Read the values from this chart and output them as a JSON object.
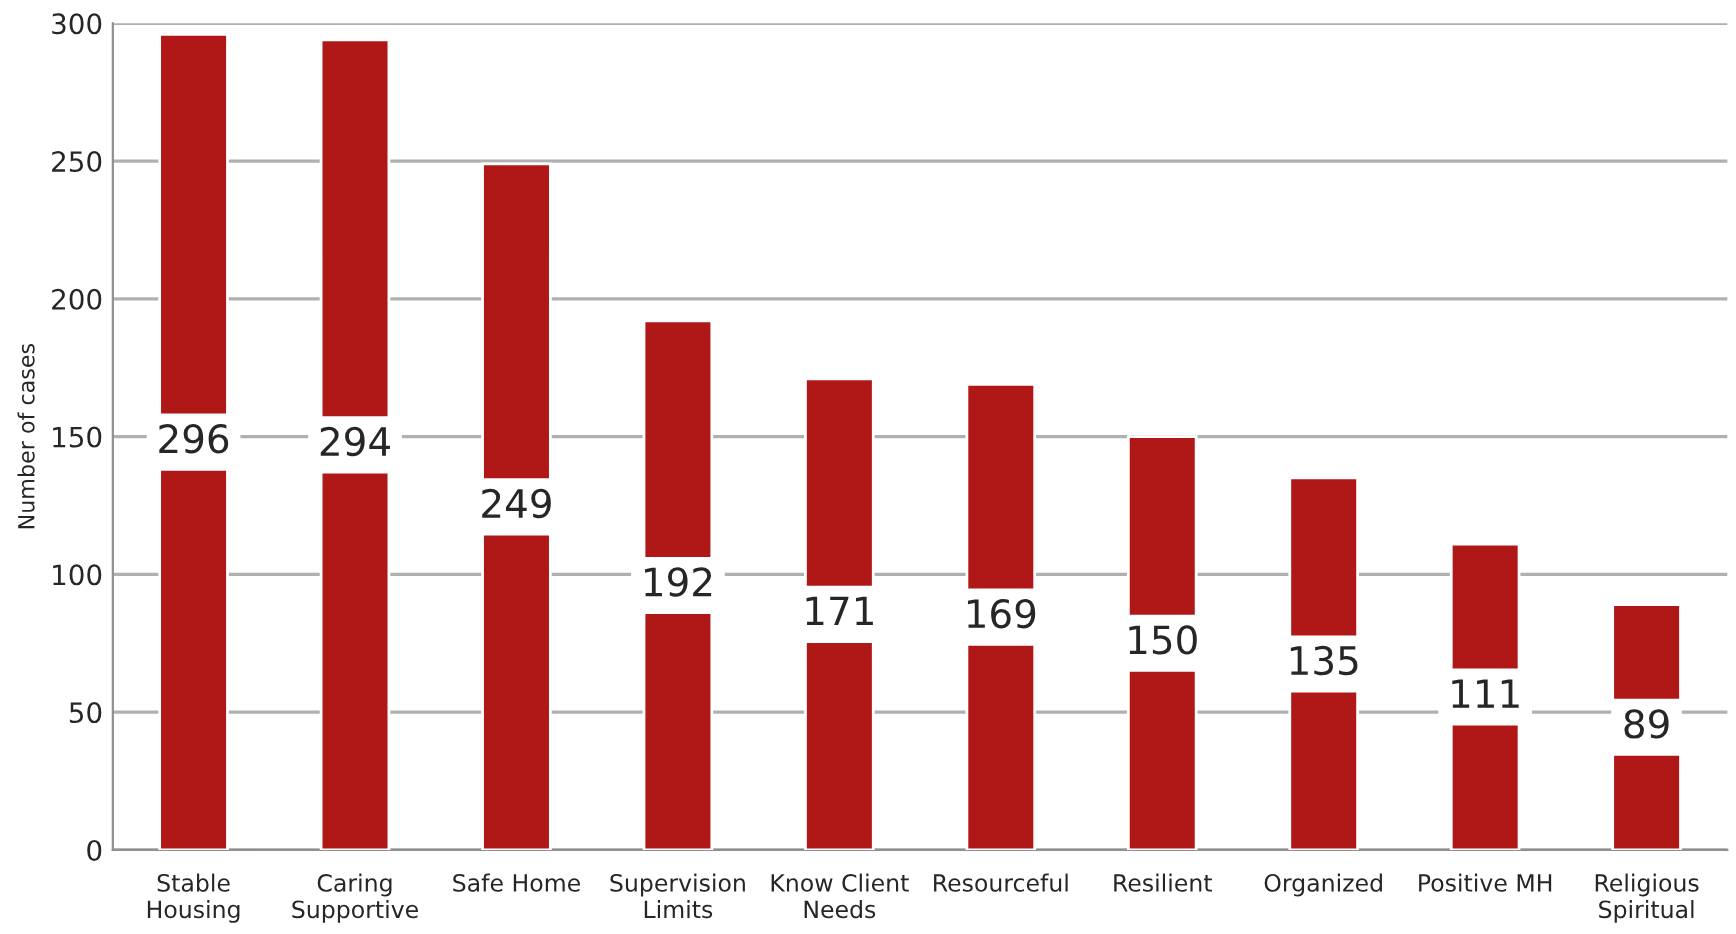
{
  "chart_data": {
    "type": "bar",
    "ylabel": "Number of cases",
    "categories": [
      "Stable\nHousing",
      "Caring\nSupportive",
      "Safe Home",
      "Supervision\nLimits",
      "Know Client\nNeeds",
      "Resourceful",
      "Resilient",
      "Organized",
      "Positive MH",
      "Religious\nSpiritual"
    ],
    "values": [
      296,
      294,
      249,
      192,
      171,
      169,
      150,
      135,
      111,
      89
    ],
    "color": "#b01818",
    "ylim": [
      0,
      300
    ],
    "yticks": [
      0,
      50,
      100,
      150,
      200,
      250,
      300
    ],
    "grid": "y",
    "data_labels": true
  }
}
